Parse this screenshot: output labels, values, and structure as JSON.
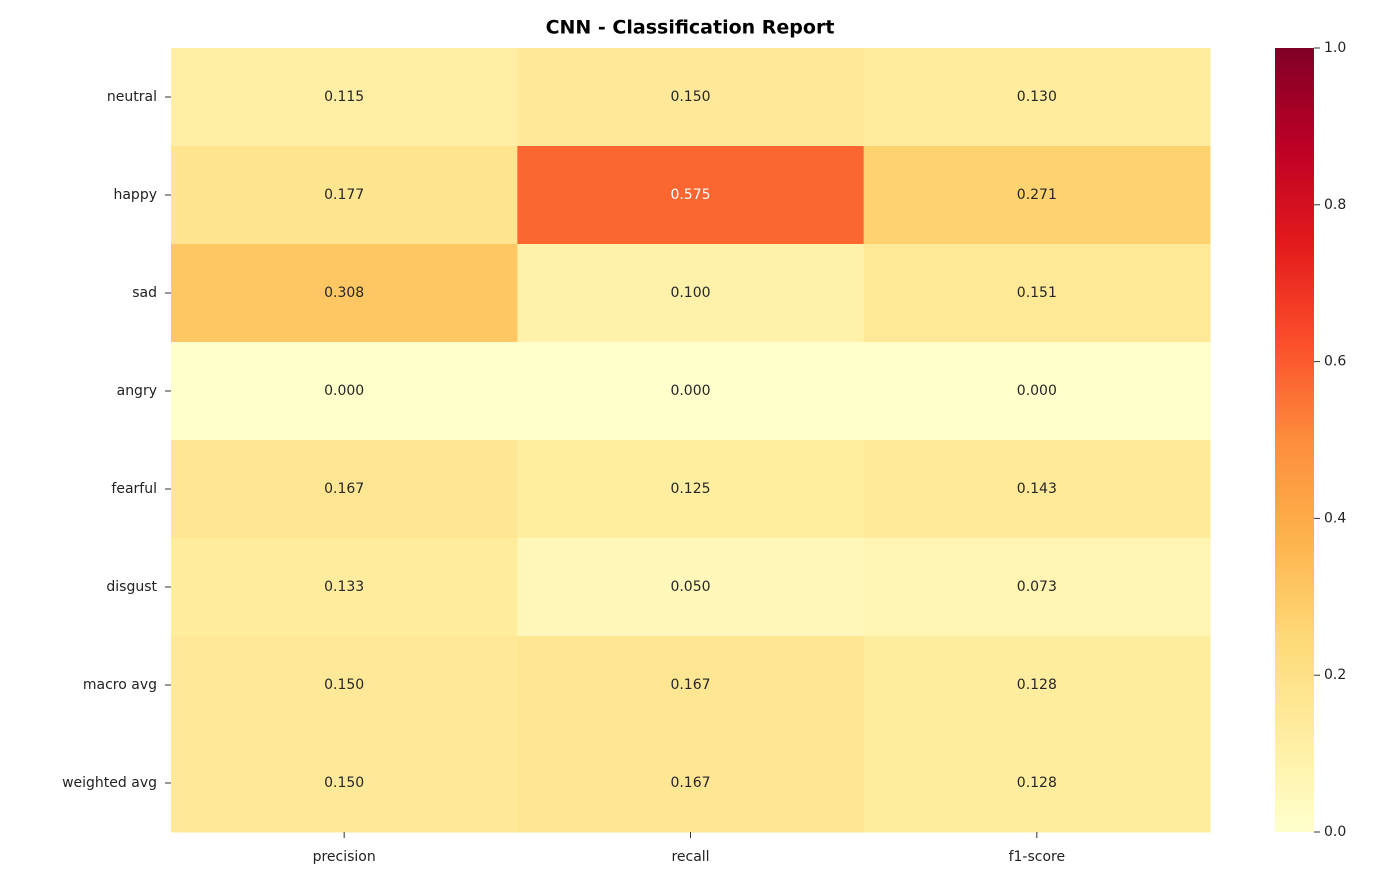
{
  "chart_data": {
    "type": "heatmap",
    "title": "CNN - Classification Report",
    "x_categories": [
      "precision",
      "recall",
      "f1-score"
    ],
    "y_categories": [
      "neutral",
      "happy",
      "sad",
      "angry",
      "fearful",
      "disgust",
      "macro avg",
      "weighted avg"
    ],
    "values": [
      [
        0.115,
        0.15,
        0.13
      ],
      [
        0.177,
        0.575,
        0.271
      ],
      [
        0.308,
        0.1,
        0.151
      ],
      [
        0,
        0,
        0
      ],
      [
        0.167,
        0.125,
        0.143
      ],
      [
        0.133,
        0.05,
        0.073
      ],
      [
        0.15,
        0.167,
        0.128
      ],
      [
        0.15,
        0.167,
        0.128
      ]
    ],
    "value_labels": [
      [
        "0.115",
        "0.150",
        "0.130"
      ],
      [
        "0.177",
        "0.575",
        "0.271"
      ],
      [
        "0.308",
        "0.100",
        "0.151"
      ],
      [
        "0.000",
        "0.000",
        "0.000"
      ],
      [
        "0.167",
        "0.125",
        "0.143"
      ],
      [
        "0.133",
        "0.050",
        "0.073"
      ],
      [
        "0.150",
        "0.167",
        "0.128"
      ],
      [
        "0.150",
        "0.167",
        "0.128"
      ]
    ],
    "colormap": [
      "#ffffcc",
      "#ffeda0",
      "#fed976",
      "#feb24c",
      "#fd8d3c",
      "#fc4e2a",
      "#e31a1c",
      "#bd0026",
      "#800026"
    ],
    "clim": [
      0,
      1
    ],
    "cticks": [
      {
        "value": 0,
        "label": "0.0"
      },
      0.2,
      0.4,
      0.6,
      0.8,
      {
        "value": 1,
        "label": "1.0"
      }
    ]
  }
}
